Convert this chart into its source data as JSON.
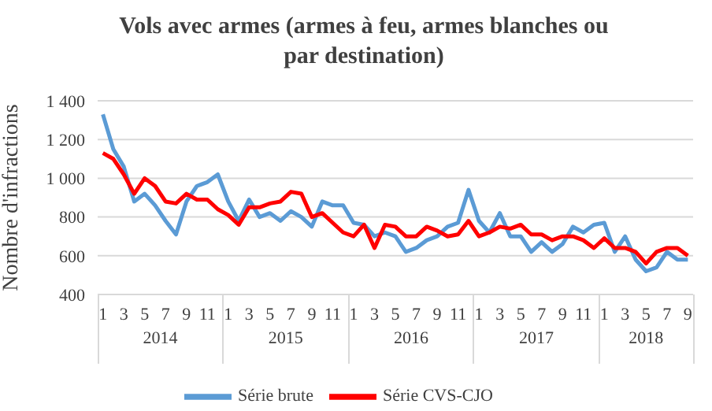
{
  "chart_data": {
    "type": "line",
    "title": "Vols avec armes (armes à feu, armes blanches ou par destination)",
    "ylabel": "Nombre d'infractions",
    "categories": [
      "1",
      null,
      "3",
      null,
      "5",
      null,
      "7",
      null,
      "9",
      null,
      "11",
      null,
      "1",
      null,
      "3",
      null,
      "5",
      null,
      "7",
      null,
      "9",
      null,
      "11",
      null,
      "1",
      null,
      "3",
      null,
      "5",
      null,
      "7",
      null,
      "9",
      null,
      "11",
      null,
      "1",
      null,
      "3",
      null,
      "5",
      null,
      "7",
      null,
      "9",
      null,
      "11",
      null,
      "1",
      null,
      "3",
      null,
      "5",
      null,
      "7",
      null,
      "9"
    ],
    "annotations": [
      "2014",
      "2015",
      "2016",
      "2017",
      "2018"
    ],
    "series": [
      {
        "name": "Série brute",
        "color": "#5b9bd5",
        "values": [
          1330,
          1150,
          1060,
          880,
          920,
          860,
          780,
          710,
          880,
          960,
          980,
          1020,
          880,
          780,
          890,
          800,
          820,
          780,
          830,
          800,
          750,
          880,
          860,
          860,
          770,
          760,
          700,
          720,
          700,
          620,
          640,
          680,
          700,
          750,
          770,
          940,
          780,
          720,
          820,
          700,
          700,
          620,
          670,
          620,
          660,
          750,
          720,
          760,
          770,
          620,
          700,
          580,
          520,
          540,
          620,
          580,
          580
        ]
      },
      {
        "name": "Série CVS-CJO",
        "color": "#ff0000",
        "values": [
          1130,
          1100,
          1020,
          920,
          1000,
          960,
          880,
          870,
          920,
          890,
          890,
          840,
          810,
          760,
          850,
          850,
          870,
          880,
          930,
          920,
          800,
          820,
          770,
          720,
          700,
          760,
          640,
          760,
          750,
          700,
          700,
          750,
          730,
          700,
          710,
          780,
          700,
          720,
          750,
          740,
          760,
          710,
          710,
          680,
          700,
          700,
          680,
          640,
          690,
          640,
          640,
          620,
          560,
          620,
          640,
          640,
          600
        ]
      }
    ],
    "ylim": [
      400,
      1400
    ],
    "yticks": [
      {
        "value": 400,
        "label": "400"
      },
      {
        "value": 600,
        "label": "600"
      },
      {
        "value": 800,
        "label": "800"
      },
      {
        "value": 1000,
        "label": "1 000"
      },
      {
        "value": 1200,
        "label": "1 200"
      },
      {
        "value": 1400,
        "label": "1 400"
      }
    ],
    "grid": "y",
    "legend": "bottom",
    "marker": "none",
    "line_style": "solid"
  }
}
